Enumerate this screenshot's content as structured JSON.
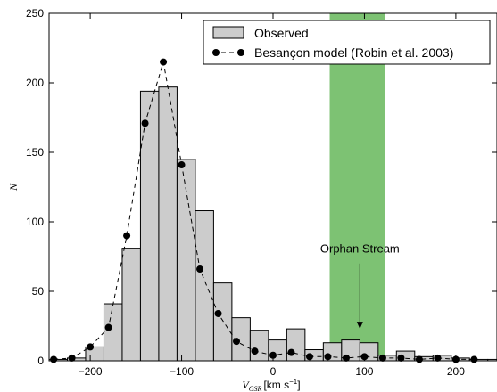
{
  "chart_data": {
    "type": "bar",
    "xlabel_var": "V",
    "xlabel_sub": "GSR",
    "xlabel_unit": "[km s",
    "xlabel_unit_sup": "−1",
    "xlabel_unit_end": "]",
    "ylabel": "N",
    "xlim": [
      -245,
      245
    ],
    "ylim": [
      0,
      250
    ],
    "xticks": [
      -200,
      -100,
      0,
      100,
      200
    ],
    "xtick_labels": [
      "−200",
      "−100",
      "0",
      "100",
      "200"
    ],
    "yticks": [
      0,
      50,
      100,
      150,
      200,
      250
    ],
    "ytick_labels": [
      "0",
      "50",
      "100",
      "150",
      "200",
      "250"
    ],
    "highlight_band": {
      "x0": 62,
      "x1": 122,
      "color": "#7dc273"
    },
    "series": [
      {
        "name": "Observed",
        "type": "histogram",
        "color": "#cccccc",
        "bin_width": 20,
        "bin_left_edges": [
          -245,
          -225,
          -205,
          -185,
          -165,
          -145,
          -125,
          -105,
          -85,
          -65,
          -45,
          -25,
          -5,
          15,
          35,
          55,
          75,
          95,
          115,
          135,
          155,
          175,
          195,
          215,
          235
        ],
        "values": [
          1,
          2,
          10,
          41,
          81,
          194,
          197,
          145,
          108,
          56,
          31,
          22,
          15,
          23,
          8,
          13,
          15,
          13,
          4,
          7,
          3,
          4,
          2,
          1,
          1
        ]
      },
      {
        "name": "Besançon model (Robin et al. 2003)",
        "type": "line",
        "color": "#000000",
        "x": [
          -240,
          -220,
          -200,
          -180,
          -160,
          -140,
          -120,
          -100,
          -80,
          -60,
          -40,
          -20,
          0,
          20,
          40,
          60,
          80,
          100,
          120,
          140,
          160,
          180,
          200,
          220
        ],
        "values": [
          1,
          2,
          10,
          24,
          90,
          171,
          215,
          141,
          66,
          34,
          14,
          7,
          4,
          6,
          3,
          3,
          2,
          3,
          2,
          2,
          1,
          2,
          1,
          1
        ]
      }
    ],
    "legend_position": "top-right",
    "annotation": {
      "text": "Orphan Stream",
      "x": 95,
      "y_text": 78,
      "y_arrow_start": 70,
      "y_arrow_end": 23
    }
  }
}
